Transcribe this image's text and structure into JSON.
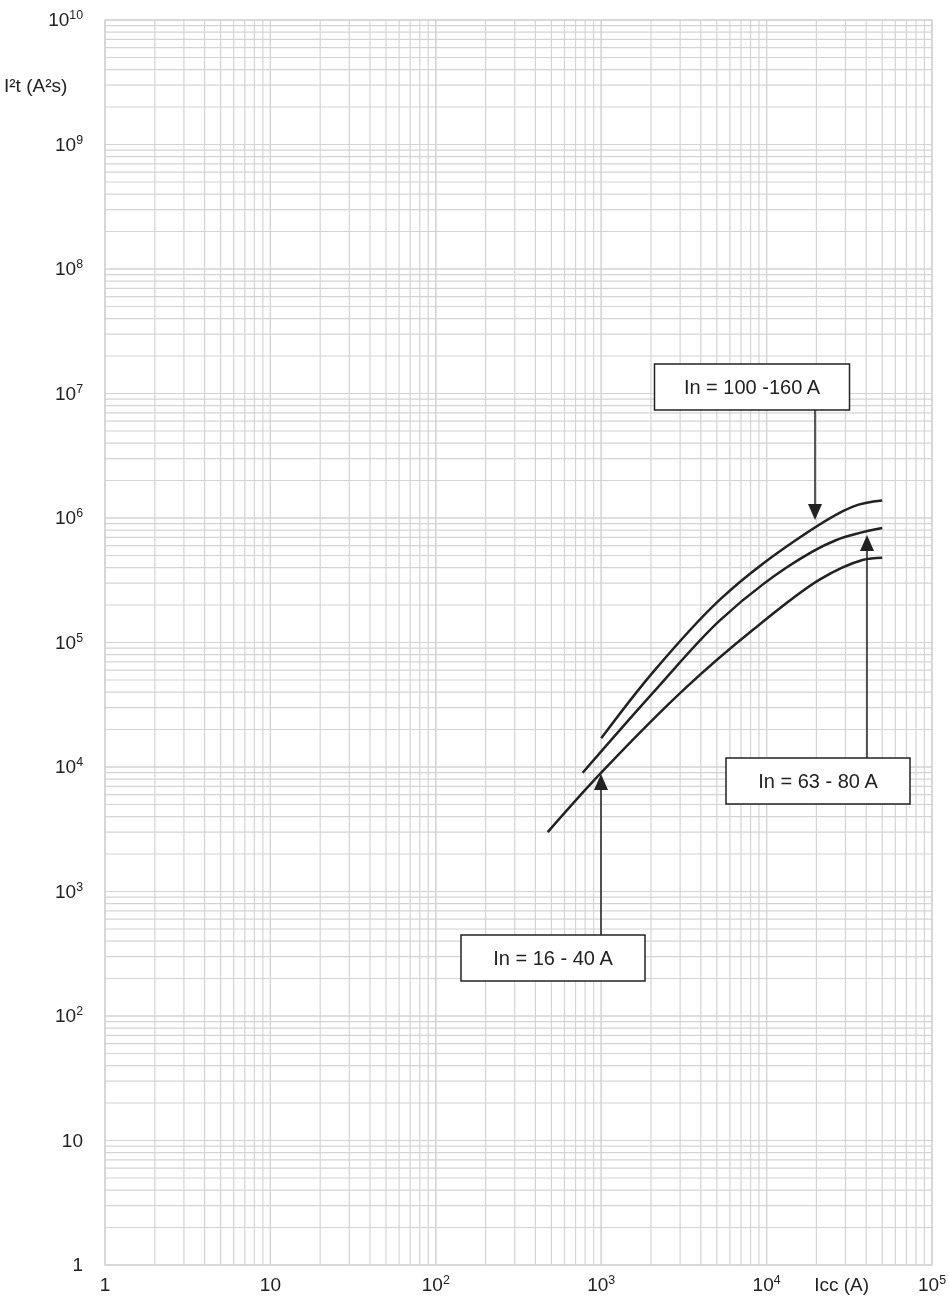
{
  "chart_data": {
    "type": "line",
    "log": "xy",
    "xlabel": "Icc (A)",
    "ylabel": "I²t (A²s)",
    "grid": true,
    "line_style": "solid",
    "marker": "none",
    "xlim": [
      1,
      100000
    ],
    "ylim": [
      1,
      10000000000
    ],
    "xticks": [
      1,
      10,
      {
        "value": 100,
        "label": "10$^{2}$"
      },
      {
        "value": 1000,
        "label": "10$^{3}$"
      },
      {
        "value": 10000,
        "label": "10$^{4}$"
      },
      {
        "value": 100000,
        "label": "10$^{5}$"
      }
    ],
    "yticks": [
      1,
      10,
      {
        "value": 100,
        "label": "10$^{2}$"
      },
      {
        "value": 1000,
        "label": "10$^{3}$"
      },
      {
        "value": 10000,
        "label": "10$^{4}$"
      },
      {
        "value": 100000,
        "label": "10$^{5}$"
      },
      {
        "value": 1000000,
        "label": "10$^{6}$"
      },
      {
        "value": 10000000,
        "label": "10$^{7}$"
      },
      {
        "value": 100000000,
        "label": "10$^{8}$"
      },
      {
        "value": 1000000000,
        "label": "10$^{9}$"
      },
      {
        "value": 10000000000,
        "label": "10$^{10}$"
      }
    ],
    "series": [
      {
        "color": "#222222",
        "x": [
          475,
          1000,
          3290,
          8240,
          20900,
          38000,
          50000
        ],
        "values": [
          3000,
          9000,
          44000,
          126000,
          320000,
          460000,
          480000
        ]
      },
      {
        "color": "#222222",
        "x": [
          773,
          2040,
          5200,
          13200,
          26000,
          50000
        ],
        "values": [
          9000,
          39000,
          150000,
          400000,
          660000,
          830000
        ]
      },
      {
        "color": "#222222",
        "x": [
          1000,
          2040,
          5200,
          13200,
          33000,
          50000
        ],
        "values": [
          17000,
          57000,
          220000,
          590000,
          1230000,
          1380000
        ]
      }
    ],
    "annotations": [
      "In = 100 -160 A",
      "In = 63 - 80 A",
      "In = 16 - 40 A"
    ]
  }
}
